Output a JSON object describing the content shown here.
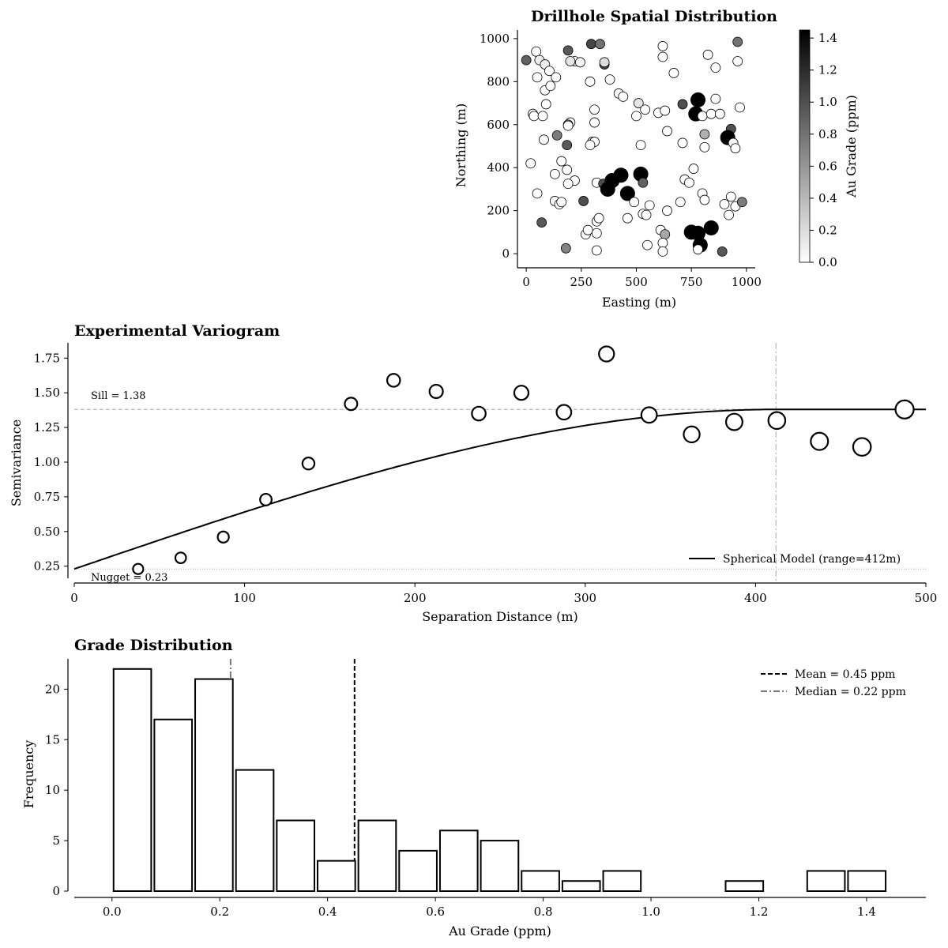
{
  "chart_data": [
    {
      "type": "scatter",
      "title": "Drillhole Spatial Distribution",
      "xlabel": "Easting (m)",
      "ylabel": "Northing (m)",
      "xlim": [
        -40,
        1040
      ],
      "ylim": [
        -40,
        1040
      ],
      "xticks": [
        0,
        250,
        500,
        750,
        1000
      ],
      "yticks": [
        0,
        200,
        400,
        600,
        800,
        1000
      ],
      "colorbar": {
        "label": "Au Grade (ppm)",
        "range": [
          0,
          1.45
        ],
        "ticks": [
          "0.0",
          "0.2",
          "0.4",
          "0.6",
          "0.8",
          "1.0",
          "1.2",
          "1.4"
        ],
        "colors": [
          "#ffffff",
          "#000000"
        ]
      },
      "points": [
        [
          0,
          900,
          0.9
        ],
        [
          45,
          940,
          0.0
        ],
        [
          60,
          900,
          0.1
        ],
        [
          85,
          880,
          0.1
        ],
        [
          50,
          820,
          0.0
        ],
        [
          105,
          850,
          0.0
        ],
        [
          85,
          760,
          0.0
        ],
        [
          110,
          780,
          0.0
        ],
        [
          135,
          820,
          0.0
        ],
        [
          190,
          945,
          0.95
        ],
        [
          220,
          895,
          0.0
        ],
        [
          200,
          895,
          0.15
        ],
        [
          245,
          890,
          0.05
        ],
        [
          295,
          975,
          1.05
        ],
        [
          335,
          975,
          0.8
        ],
        [
          355,
          880,
          1.05
        ],
        [
          355,
          890,
          0.2
        ],
        [
          380,
          810,
          0.05
        ],
        [
          290,
          800,
          0.0
        ],
        [
          620,
          965,
          0.0
        ],
        [
          620,
          915,
          0.0
        ],
        [
          670,
          840,
          0.0
        ],
        [
          825,
          925,
          0.0
        ],
        [
          860,
          865,
          0.0
        ],
        [
          960,
          985,
          0.8
        ],
        [
          960,
          895,
          0.0
        ],
        [
          30,
          650,
          0.0
        ],
        [
          35,
          640,
          0.0
        ],
        [
          75,
          640,
          0.0
        ],
        [
          90,
          695,
          0.0
        ],
        [
          200,
          610,
          0.0
        ],
        [
          190,
          600,
          0.7
        ],
        [
          190,
          595,
          0.0
        ],
        [
          310,
          670,
          0.0
        ],
        [
          310,
          610,
          0.0
        ],
        [
          420,
          745,
          0.0
        ],
        [
          440,
          730,
          0.0
        ],
        [
          510,
          700,
          0.15
        ],
        [
          500,
          640,
          0.0
        ],
        [
          540,
          670,
          0.0
        ],
        [
          600,
          655,
          0.0
        ],
        [
          630,
          665,
          0.0
        ],
        [
          710,
          695,
          1.0
        ],
        [
          780,
          715,
          1.45
        ],
        [
          770,
          650,
          1.45
        ],
        [
          800,
          640,
          0.0
        ],
        [
          840,
          650,
          0.0
        ],
        [
          860,
          720,
          0.0
        ],
        [
          880,
          650,
          0.0
        ],
        [
          970,
          680,
          0.0
        ],
        [
          140,
          550,
          0.75
        ],
        [
          80,
          530,
          0.0
        ],
        [
          185,
          505,
          0.95
        ],
        [
          300,
          520,
          0.15
        ],
        [
          310,
          520,
          0.0
        ],
        [
          290,
          505,
          0.0
        ],
        [
          520,
          505,
          0.0
        ],
        [
          640,
          570,
          0.0
        ],
        [
          710,
          515,
          0.0
        ],
        [
          810,
          555,
          0.45
        ],
        [
          810,
          495,
          0.0
        ],
        [
          930,
          580,
          1.0
        ],
        [
          915,
          540,
          1.45
        ],
        [
          940,
          515,
          0.05
        ],
        [
          950,
          490,
          0.0
        ],
        [
          20,
          420,
          0.0
        ],
        [
          130,
          370,
          0.0
        ],
        [
          160,
          430,
          0.0
        ],
        [
          185,
          390,
          0.0
        ],
        [
          220,
          340,
          0.0
        ],
        [
          190,
          325,
          0.0
        ],
        [
          260,
          245,
          1.0
        ],
        [
          320,
          330,
          0.0
        ],
        [
          350,
          325,
          1.0
        ],
        [
          370,
          300,
          1.45
        ],
        [
          390,
          340,
          1.45
        ],
        [
          430,
          365,
          1.45
        ],
        [
          460,
          280,
          1.45
        ],
        [
          520,
          370,
          1.45
        ],
        [
          530,
          330,
          0.9
        ],
        [
          490,
          240,
          0.0
        ],
        [
          460,
          165,
          0.0
        ],
        [
          530,
          185,
          0.0
        ],
        [
          545,
          180,
          0.0
        ],
        [
          560,
          225,
          0.0
        ],
        [
          640,
          200,
          0.0
        ],
        [
          700,
          240,
          0.0
        ],
        [
          720,
          345,
          0.0
        ],
        [
          740,
          330,
          0.0
        ],
        [
          760,
          395,
          0.0
        ],
        [
          800,
          280,
          0.0
        ],
        [
          810,
          250,
          0.0
        ],
        [
          930,
          265,
          0.0
        ],
        [
          900,
          230,
          0.0
        ],
        [
          950,
          220,
          0.0
        ],
        [
          980,
          240,
          0.75
        ],
        [
          920,
          180,
          0.0
        ],
        [
          50,
          280,
          0.0
        ],
        [
          70,
          145,
          0.95
        ],
        [
          130,
          245,
          0.0
        ],
        [
          150,
          230,
          0.0
        ],
        [
          160,
          240,
          0.0
        ],
        [
          320,
          150,
          0.0
        ],
        [
          330,
          165,
          0.0
        ],
        [
          270,
          90,
          0.0
        ],
        [
          280,
          110,
          0.0
        ],
        [
          320,
          95,
          0.0
        ],
        [
          180,
          25,
          0.7
        ],
        [
          320,
          15,
          0.0
        ],
        [
          550,
          40,
          0.0
        ],
        [
          610,
          110,
          0.0
        ],
        [
          630,
          90,
          0.5
        ],
        [
          620,
          50,
          0.0
        ],
        [
          620,
          10,
          0.0
        ],
        [
          750,
          100,
          1.45
        ],
        [
          780,
          95,
          1.45
        ],
        [
          790,
          40,
          1.45
        ],
        [
          780,
          20,
          0.0
        ],
        [
          840,
          120,
          1.45
        ],
        [
          890,
          10,
          0.95
        ]
      ]
    },
    {
      "type": "scatter",
      "title": "Experimental Variogram",
      "xlabel": "Separation Distance (m)",
      "ylabel": "Semivariance",
      "xlim": [
        0,
        500
      ],
      "ylim": [
        0.14,
        1.86
      ],
      "xticks": [
        0,
        100,
        200,
        300,
        400,
        500
      ],
      "yticks": [
        "0.25",
        "0.50",
        "0.75",
        "1.00",
        "1.25",
        "1.50",
        "1.75"
      ],
      "points": [
        [
          37.5,
          0.23
        ],
        [
          62.5,
          0.31
        ],
        [
          87.5,
          0.46
        ],
        [
          112.5,
          0.73
        ],
        [
          137.5,
          0.99
        ],
        [
          162.5,
          1.42
        ],
        [
          187.5,
          1.59
        ],
        [
          212.5,
          1.51
        ],
        [
          237.5,
          1.35
        ],
        [
          262.5,
          1.5
        ],
        [
          287.5,
          1.36
        ],
        [
          312.5,
          1.78
        ],
        [
          337.5,
          1.34
        ],
        [
          362.5,
          1.2
        ],
        [
          387.5,
          1.29
        ],
        [
          412.5,
          1.3
        ],
        [
          437.5,
          1.15
        ],
        [
          462.5,
          1.11
        ],
        [
          487.5,
          1.38
        ]
      ],
      "model": {
        "type": "spherical",
        "nugget": 0.23,
        "sill": 1.38,
        "range": 412
      },
      "series": [
        {
          "name": "Spherical Model (range=412m)"
        }
      ],
      "annotations": [
        "Sill = 1.38",
        "Nugget = 0.23"
      ]
    },
    {
      "type": "bar",
      "title": "Grade Distribution",
      "xlabel": "Au Grade (ppm)",
      "ylabel": "Frequency",
      "xlim": [
        -0.07,
        1.51
      ],
      "ylim": [
        0,
        23
      ],
      "xticks": [
        "0.0",
        "0.2",
        "0.4",
        "0.6",
        "0.8",
        "1.0",
        "1.2",
        "1.4"
      ],
      "yticks": [
        "0",
        "5",
        "10",
        "15",
        "20"
      ],
      "bin_width": 0.0757,
      "bin_start": 0.0,
      "values": [
        22,
        17,
        21,
        12,
        7,
        3,
        7,
        4,
        6,
        5,
        2,
        1,
        2,
        0,
        0,
        1,
        0,
        2,
        2
      ],
      "mean": 0.45,
      "median": 0.22,
      "series": [
        {
          "name": "Mean = 0.45 ppm"
        },
        {
          "name": "Median = 0.22 ppm"
        }
      ]
    }
  ]
}
